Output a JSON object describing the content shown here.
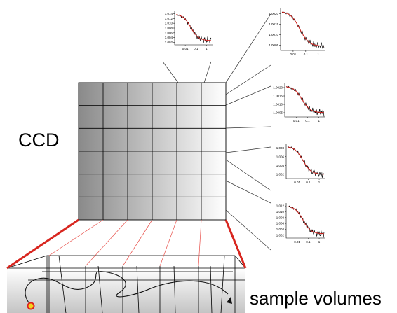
{
  "diagram": {
    "ccd_label": "CCD",
    "sample_label": "sample volumes",
    "grid": {
      "rows": 6,
      "cols": 6
    },
    "colors": {
      "fit_curve": "#e0201b",
      "data_curve": "#000000",
      "ccd_dark": "#8c8c8c",
      "ccd_light": "#ffffff",
      "outline_red": "#d8261f",
      "particle_fill": "#f4d21a",
      "particle_ring": "#e0201b"
    },
    "plots": [
      {
        "id": "top-center",
        "yticks": [
          "1.014",
          "1.012",
          "1.010",
          "1.008",
          "1.006",
          "1.004",
          "1.002"
        ],
        "xticks": [
          "0.01",
          "0.1",
          "1"
        ]
      },
      {
        "id": "right-1",
        "yticks": [
          "1.0020",
          "1.0015",
          "1.0010",
          "1.0005"
        ],
        "xticks": [
          "0.01",
          "0.1",
          "1"
        ]
      },
      {
        "id": "right-2",
        "yticks": [
          "1.0020",
          "1.0015",
          "1.0010",
          "1.0005"
        ],
        "xticks": [
          "0.01",
          "0.1",
          "1"
        ]
      },
      {
        "id": "right-3",
        "yticks": [
          "1.008",
          "1.006",
          "1.004",
          "1.002"
        ],
        "xticks": [
          "0.01",
          "0.1",
          "1"
        ]
      },
      {
        "id": "right-4",
        "yticks": [
          "1.012",
          "1.010",
          "1.008",
          "1.006",
          "1.004",
          "1.002"
        ],
        "xticks": [
          "0.01",
          "0.1",
          "1"
        ]
      }
    ]
  }
}
